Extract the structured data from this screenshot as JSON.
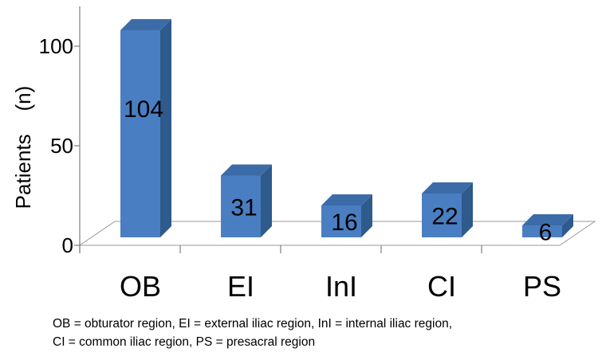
{
  "chart_data": {
    "type": "bar",
    "categories": [
      "OB",
      "EI",
      "InI",
      "CI",
      "PS"
    ],
    "values": [
      104,
      31,
      16,
      22,
      6
    ],
    "data_labels": [
      "104",
      "31",
      "16",
      "22",
      "6"
    ],
    "ylabel": "Patients    (n)",
    "xlabel": "",
    "title": "",
    "ylim": [
      0,
      120
    ],
    "y_ticks": [
      "0",
      "50",
      "100"
    ],
    "y_tick_values": [
      0,
      50,
      100
    ],
    "grid": false,
    "style": "3d",
    "bar_colors": {
      "front": "#4A7EC2",
      "side": "#2E5A8C",
      "top": "#3C6CA8"
    }
  },
  "footnote": {
    "line1": "OB = obturator region, EI = external iliac region, InI = internal iliac region,",
    "line2": "CI = common iliac region, PS = presacral region"
  }
}
